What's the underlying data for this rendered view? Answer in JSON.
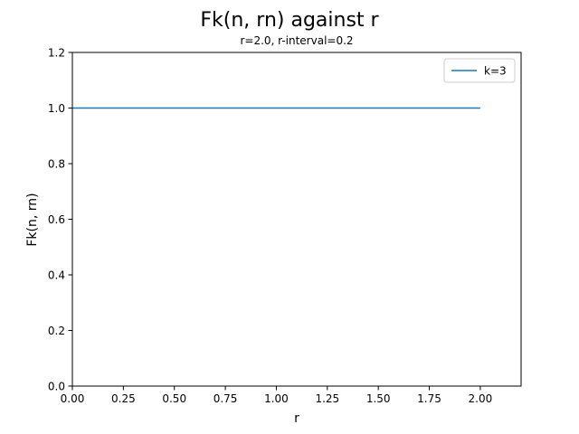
{
  "chart_data": {
    "type": "line",
    "title": "Fk(n, rn) against r",
    "subtitle": "r=2.0, r-interval=0.2",
    "xlabel": "r",
    "ylabel": "Fk(n, rn)",
    "xlim": [
      0.0,
      2.2
    ],
    "ylim": [
      0.0,
      1.2
    ],
    "xticks": [
      0.0,
      0.25,
      0.5,
      0.75,
      1.0,
      1.25,
      1.5,
      1.75,
      2.0
    ],
    "xtick_labels": [
      "0.00",
      "0.25",
      "0.50",
      "0.75",
      "1.00",
      "1.25",
      "1.50",
      "1.75",
      "2.00"
    ],
    "yticks": [
      0.0,
      0.2,
      0.4,
      0.6,
      0.8,
      1.0,
      1.2
    ],
    "ytick_labels": [
      "0.0",
      "0.2",
      "0.4",
      "0.6",
      "0.8",
      "1.0",
      "1.2"
    ],
    "grid": false,
    "legend_position": "top-right",
    "series": [
      {
        "name": "k=3",
        "color": "#1f77b4",
        "x": [
          0.0,
          0.2,
          0.4,
          0.6,
          0.8,
          1.0,
          1.2,
          1.4,
          1.6,
          1.8,
          2.0
        ],
        "y": [
          1.0,
          1.0,
          1.0,
          1.0,
          1.0,
          1.0,
          1.0,
          1.0,
          1.0,
          1.0,
          1.0
        ]
      }
    ]
  }
}
